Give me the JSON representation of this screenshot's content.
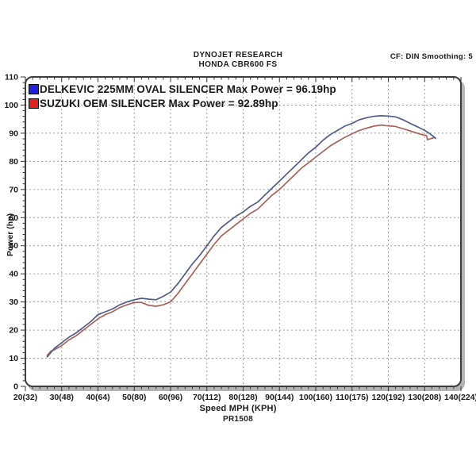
{
  "header": {
    "title": "DYNOJET RESEARCH",
    "subtitle": "HONDA CBR600 FS",
    "settings": "CF: DIN  Smoothing: 5"
  },
  "legend": {
    "items": [
      {
        "label": "DELKEVIC 225MM OVAL SILENCER Max Power  = 96.19hp",
        "swatch_color": "#2020e0",
        "series": "delkevic"
      },
      {
        "label": "SUZUKI OEM SILENCER Max Power = 92.89hp",
        "swatch_color": "#e02020",
        "series": "suzuki_oem"
      }
    ]
  },
  "footer": {
    "run_id": "PR1508"
  },
  "chart_data": {
    "type": "line",
    "title": "",
    "xlabel": "Speed MPH (KPH)",
    "ylabel": "Power (hp)",
    "xlim": [
      20,
      140
    ],
    "ylim": [
      0,
      110
    ],
    "x_major_step": 10,
    "x_minor_step": 2,
    "y_major_step": 10,
    "y_minor_step": 2,
    "grid": true,
    "grid_color": "#9a9a9a",
    "frame_color": "#3c3c3c",
    "shadow_color": "#b4b4b4",
    "tick_label_color": "#1a1a1a",
    "x_tick_labels": [
      "20(32)",
      "30(48)",
      "40(64)",
      "50(80)",
      "60(96)",
      "70(112)",
      "80(128)",
      "90(144)",
      "100(160)",
      "110(175)",
      "120(192)",
      "130(208)",
      "140(224)"
    ],
    "y_tick_labels": [
      "0",
      "10",
      "20",
      "30",
      "40",
      "50",
      "60",
      "70",
      "80",
      "90",
      "100",
      "110"
    ],
    "legend_position": "top-left",
    "series": [
      {
        "name": "DELKEVIC 225MM OVAL SILENCER",
        "max_power_hp": 96.19,
        "color": "#4f5c87",
        "points": [
          [
            26,
            10.5
          ],
          [
            27,
            12
          ],
          [
            28,
            13.5
          ],
          [
            30,
            15.5
          ],
          [
            32,
            17.5
          ],
          [
            34,
            19
          ],
          [
            36,
            21
          ],
          [
            38,
            23
          ],
          [
            40,
            25.5
          ],
          [
            42,
            26.5
          ],
          [
            44,
            27.5
          ],
          [
            46,
            29
          ],
          [
            48,
            30
          ],
          [
            50,
            30.8
          ],
          [
            52,
            31.3
          ],
          [
            54,
            31
          ],
          [
            56,
            30.8
          ],
          [
            58,
            32
          ],
          [
            60,
            33.5
          ],
          [
            62,
            36.5
          ],
          [
            64,
            40
          ],
          [
            66,
            43.5
          ],
          [
            68,
            46.5
          ],
          [
            70,
            50
          ],
          [
            72,
            53.5
          ],
          [
            74,
            56.5
          ],
          [
            76,
            58.5
          ],
          [
            78,
            60.5
          ],
          [
            80,
            62
          ],
          [
            82,
            64
          ],
          [
            84,
            65.5
          ],
          [
            86,
            68
          ],
          [
            88,
            70.5
          ],
          [
            90,
            73
          ],
          [
            92,
            75.5
          ],
          [
            94,
            78
          ],
          [
            96,
            80.5
          ],
          [
            98,
            83
          ],
          [
            100,
            85
          ],
          [
            102,
            87.5
          ],
          [
            104,
            89.5
          ],
          [
            106,
            91
          ],
          [
            108,
            92.5
          ],
          [
            110,
            93.5
          ],
          [
            112,
            94.8
          ],
          [
            114,
            95.5
          ],
          [
            116,
            96
          ],
          [
            118,
            96.2
          ],
          [
            120,
            96.1
          ],
          [
            122,
            95.8
          ],
          [
            124,
            94.8
          ],
          [
            126,
            93.5
          ],
          [
            128,
            92.3
          ],
          [
            130,
            91
          ],
          [
            131,
            90.2
          ],
          [
            132,
            89.3
          ],
          [
            133,
            88.2
          ]
        ]
      },
      {
        "name": "SUZUKI OEM SILENCER",
        "max_power_hp": 92.89,
        "color": "#a8625a",
        "points": [
          [
            26,
            11
          ],
          [
            27,
            12.5
          ],
          [
            28,
            13
          ],
          [
            30,
            14.5
          ],
          [
            32,
            16.5
          ],
          [
            34,
            18
          ],
          [
            36,
            20
          ],
          [
            38,
            22
          ],
          [
            40,
            24
          ],
          [
            42,
            25.5
          ],
          [
            44,
            26.5
          ],
          [
            46,
            28
          ],
          [
            48,
            29
          ],
          [
            50,
            29.8
          ],
          [
            52,
            29.8
          ],
          [
            54,
            28.8
          ],
          [
            56,
            28.5
          ],
          [
            58,
            29
          ],
          [
            60,
            30
          ],
          [
            62,
            33
          ],
          [
            64,
            36.5
          ],
          [
            66,
            40
          ],
          [
            68,
            43.5
          ],
          [
            70,
            47
          ],
          [
            72,
            50.5
          ],
          [
            74,
            53.5
          ],
          [
            76,
            55.5
          ],
          [
            78,
            57.5
          ],
          [
            80,
            59.5
          ],
          [
            82,
            61.5
          ],
          [
            84,
            63
          ],
          [
            86,
            65.5
          ],
          [
            88,
            68
          ],
          [
            90,
            70
          ],
          [
            92,
            72.5
          ],
          [
            94,
            75
          ],
          [
            96,
            77.5
          ],
          [
            98,
            79.5
          ],
          [
            100,
            81.5
          ],
          [
            102,
            83.5
          ],
          [
            104,
            85.5
          ],
          [
            106,
            87
          ],
          [
            108,
            88.5
          ],
          [
            110,
            89.8
          ],
          [
            112,
            91
          ],
          [
            114,
            91.8
          ],
          [
            116,
            92.5
          ],
          [
            118,
            92.9
          ],
          [
            120,
            92.6
          ],
          [
            122,
            92.4
          ],
          [
            124,
            91.6
          ],
          [
            126,
            90.8
          ],
          [
            128,
            90
          ],
          [
            129.5,
            89.4
          ],
          [
            130.5,
            89.2
          ],
          [
            130.8,
            87.7
          ],
          [
            131.5,
            88
          ],
          [
            132.5,
            88.4
          ]
        ]
      }
    ]
  }
}
